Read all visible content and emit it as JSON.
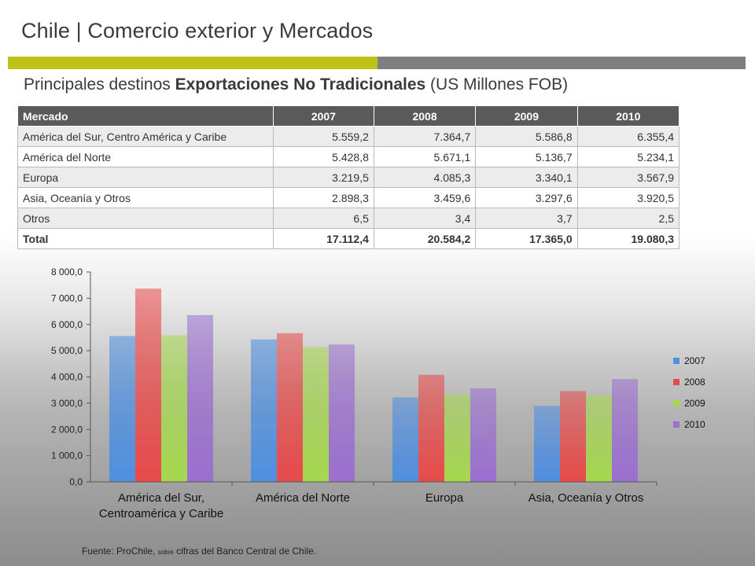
{
  "header": {
    "title": "Chile | Comercio exterior y Mercados",
    "subtitle_pre": "Principales destinos ",
    "subtitle_bold": "Exportaciones No Tradicionales",
    "subtitle_post": " (US Millones FOB)"
  },
  "colors": {
    "accent_green": "#bfc218",
    "accent_gray": "#7f7f7f"
  },
  "table": {
    "headers": [
      "Mercado",
      "2007",
      "2008",
      "2009",
      "2010"
    ],
    "rows": [
      [
        "América del Sur, Centro América y Caribe",
        "5.559,2",
        "7.364,7",
        "5.586,8",
        "6.355,4"
      ],
      [
        "América del Norte",
        "5.428,8",
        "5.671,1",
        "5.136,7",
        "5.234,1"
      ],
      [
        "Europa",
        "3.219,5",
        "4.085,3",
        "3.340,1",
        "3.567,9"
      ],
      [
        "Asia, Oceanía y Otros",
        "2.898,3",
        "3.459,6",
        "3.297,6",
        "3.920,5"
      ],
      [
        "Otros",
        "6,5",
        "3,4",
        "3,7",
        "2,5"
      ],
      [
        "Total",
        "17.112,4",
        "20.584,2",
        "17.365,0",
        "19.080,3"
      ]
    ]
  },
  "chart_data": {
    "type": "bar",
    "categories": [
      "América del Sur,\nCentroamérica y Caribe",
      "América del Norte",
      "Europa",
      "Asia, Oceanía y Otros"
    ],
    "series": [
      {
        "name": "2007",
        "values": [
          5559.2,
          5428.8,
          3219.5,
          2898.3
        ],
        "color": "#4f8fe0"
      },
      {
        "name": "2008",
        "values": [
          7364.7,
          5671.1,
          4085.3,
          3459.6
        ],
        "color": "#e84a4a"
      },
      {
        "name": "2009",
        "values": [
          5586.8,
          5136.7,
          3340.1,
          3297.6
        ],
        "color": "#a6d84e"
      },
      {
        "name": "2010",
        "values": [
          6355.4,
          5234.1,
          3567.9,
          3920.5
        ],
        "color": "#9b6fd0"
      }
    ],
    "ylim": [
      0,
      8000
    ],
    "yticks": [
      "0,0",
      "1 000,0",
      "2 000,0",
      "3 000,0",
      "4 000,0",
      "5 000,0",
      "6 000,0",
      "7 000,0",
      "8 000,0"
    ],
    "legend": "right"
  },
  "footer": {
    "source_pre": "Fuente: ProChile, ",
    "source_small": "sobre",
    "source_post": " cifras del Banco Central de Chile."
  }
}
